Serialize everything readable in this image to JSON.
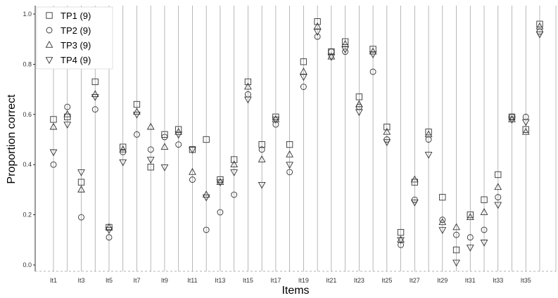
{
  "chart_data": {
    "type": "scatter",
    "xlabel": "Items",
    "ylabel": "Proportion correct",
    "ylim": [
      0.0,
      1.0
    ],
    "yticks": [
      "0.0",
      "0.2",
      "0.4",
      "0.6",
      "0.8",
      "1.0"
    ],
    "categories": [
      "It1",
      "It2",
      "It3",
      "It4",
      "It5",
      "It6",
      "It7",
      "It8",
      "It9",
      "It10",
      "It11",
      "It12",
      "It13",
      "It14",
      "It15",
      "It16",
      "It17",
      "It18",
      "It19",
      "It20",
      "It21",
      "It22",
      "It23",
      "It24",
      "It25",
      "It26",
      "It27",
      "It28",
      "It29",
      "It30",
      "It31",
      "It32",
      "It33",
      "It34",
      "It35",
      "It36"
    ],
    "x_tick_labels": [
      "It1",
      "",
      "It3",
      "",
      "It5",
      "",
      "It7",
      "",
      "It9",
      "",
      "It11",
      "",
      "It13",
      "",
      "It15",
      "",
      "It17",
      "",
      "It19",
      "",
      "It21",
      "",
      "It23",
      "",
      "It25",
      "",
      "It27",
      "",
      "It29",
      "",
      "It31",
      "",
      "It33",
      "",
      "It35",
      ""
    ],
    "grid": "vertical lines at each item",
    "legend_position": "top-left",
    "series": [
      {
        "name": "TP1 (9)",
        "marker": "square",
        "values": [
          0.58,
          0.59,
          0.33,
          0.73,
          0.15,
          0.47,
          0.64,
          0.39,
          0.52,
          0.54,
          0.46,
          0.5,
          0.34,
          0.42,
          0.73,
          0.48,
          0.59,
          0.48,
          0.81,
          0.97,
          0.85,
          0.89,
          0.67,
          0.86,
          0.55,
          0.13,
          0.33,
          0.53,
          0.27,
          0.06,
          0.2,
          0.26,
          0.36,
          0.59,
          0.54,
          0.96
        ]
      },
      {
        "name": "TP2 (9)",
        "marker": "circle",
        "values": [
          0.4,
          0.63,
          0.19,
          0.62,
          0.11,
          0.45,
          0.52,
          0.46,
          0.51,
          0.48,
          0.34,
          0.14,
          0.21,
          0.28,
          0.68,
          0.46,
          0.56,
          0.37,
          0.71,
          0.91,
          0.85,
          0.85,
          0.63,
          0.77,
          0.5,
          0.08,
          0.26,
          0.5,
          0.18,
          0.12,
          0.11,
          0.14,
          0.27,
          0.59,
          0.59,
          0.93
        ]
      },
      {
        "name": "TP3 (9)",
        "marker": "triangle-up",
        "values": [
          0.55,
          0.6,
          0.3,
          0.68,
          0.15,
          0.46,
          0.61,
          0.55,
          0.47,
          0.53,
          0.37,
          0.28,
          0.33,
          0.4,
          0.71,
          0.42,
          0.58,
          0.44,
          0.77,
          0.95,
          0.83,
          0.88,
          0.64,
          0.85,
          0.53,
          0.1,
          0.34,
          0.52,
          0.17,
          0.15,
          0.19,
          0.21,
          0.31,
          0.58,
          0.53,
          0.95
        ]
      },
      {
        "name": "TP4 (9)",
        "marker": "triangle-down",
        "values": [
          0.45,
          0.56,
          0.37,
          0.67,
          0.14,
          0.41,
          0.6,
          0.42,
          0.39,
          0.52,
          0.46,
          0.27,
          0.33,
          0.37,
          0.66,
          0.32,
          0.58,
          0.4,
          0.75,
          0.93,
          0.83,
          0.86,
          0.61,
          0.84,
          0.49,
          0.1,
          0.25,
          0.44,
          0.14,
          0.01,
          0.07,
          0.09,
          0.24,
          0.58,
          0.57,
          0.92
        ]
      }
    ]
  }
}
